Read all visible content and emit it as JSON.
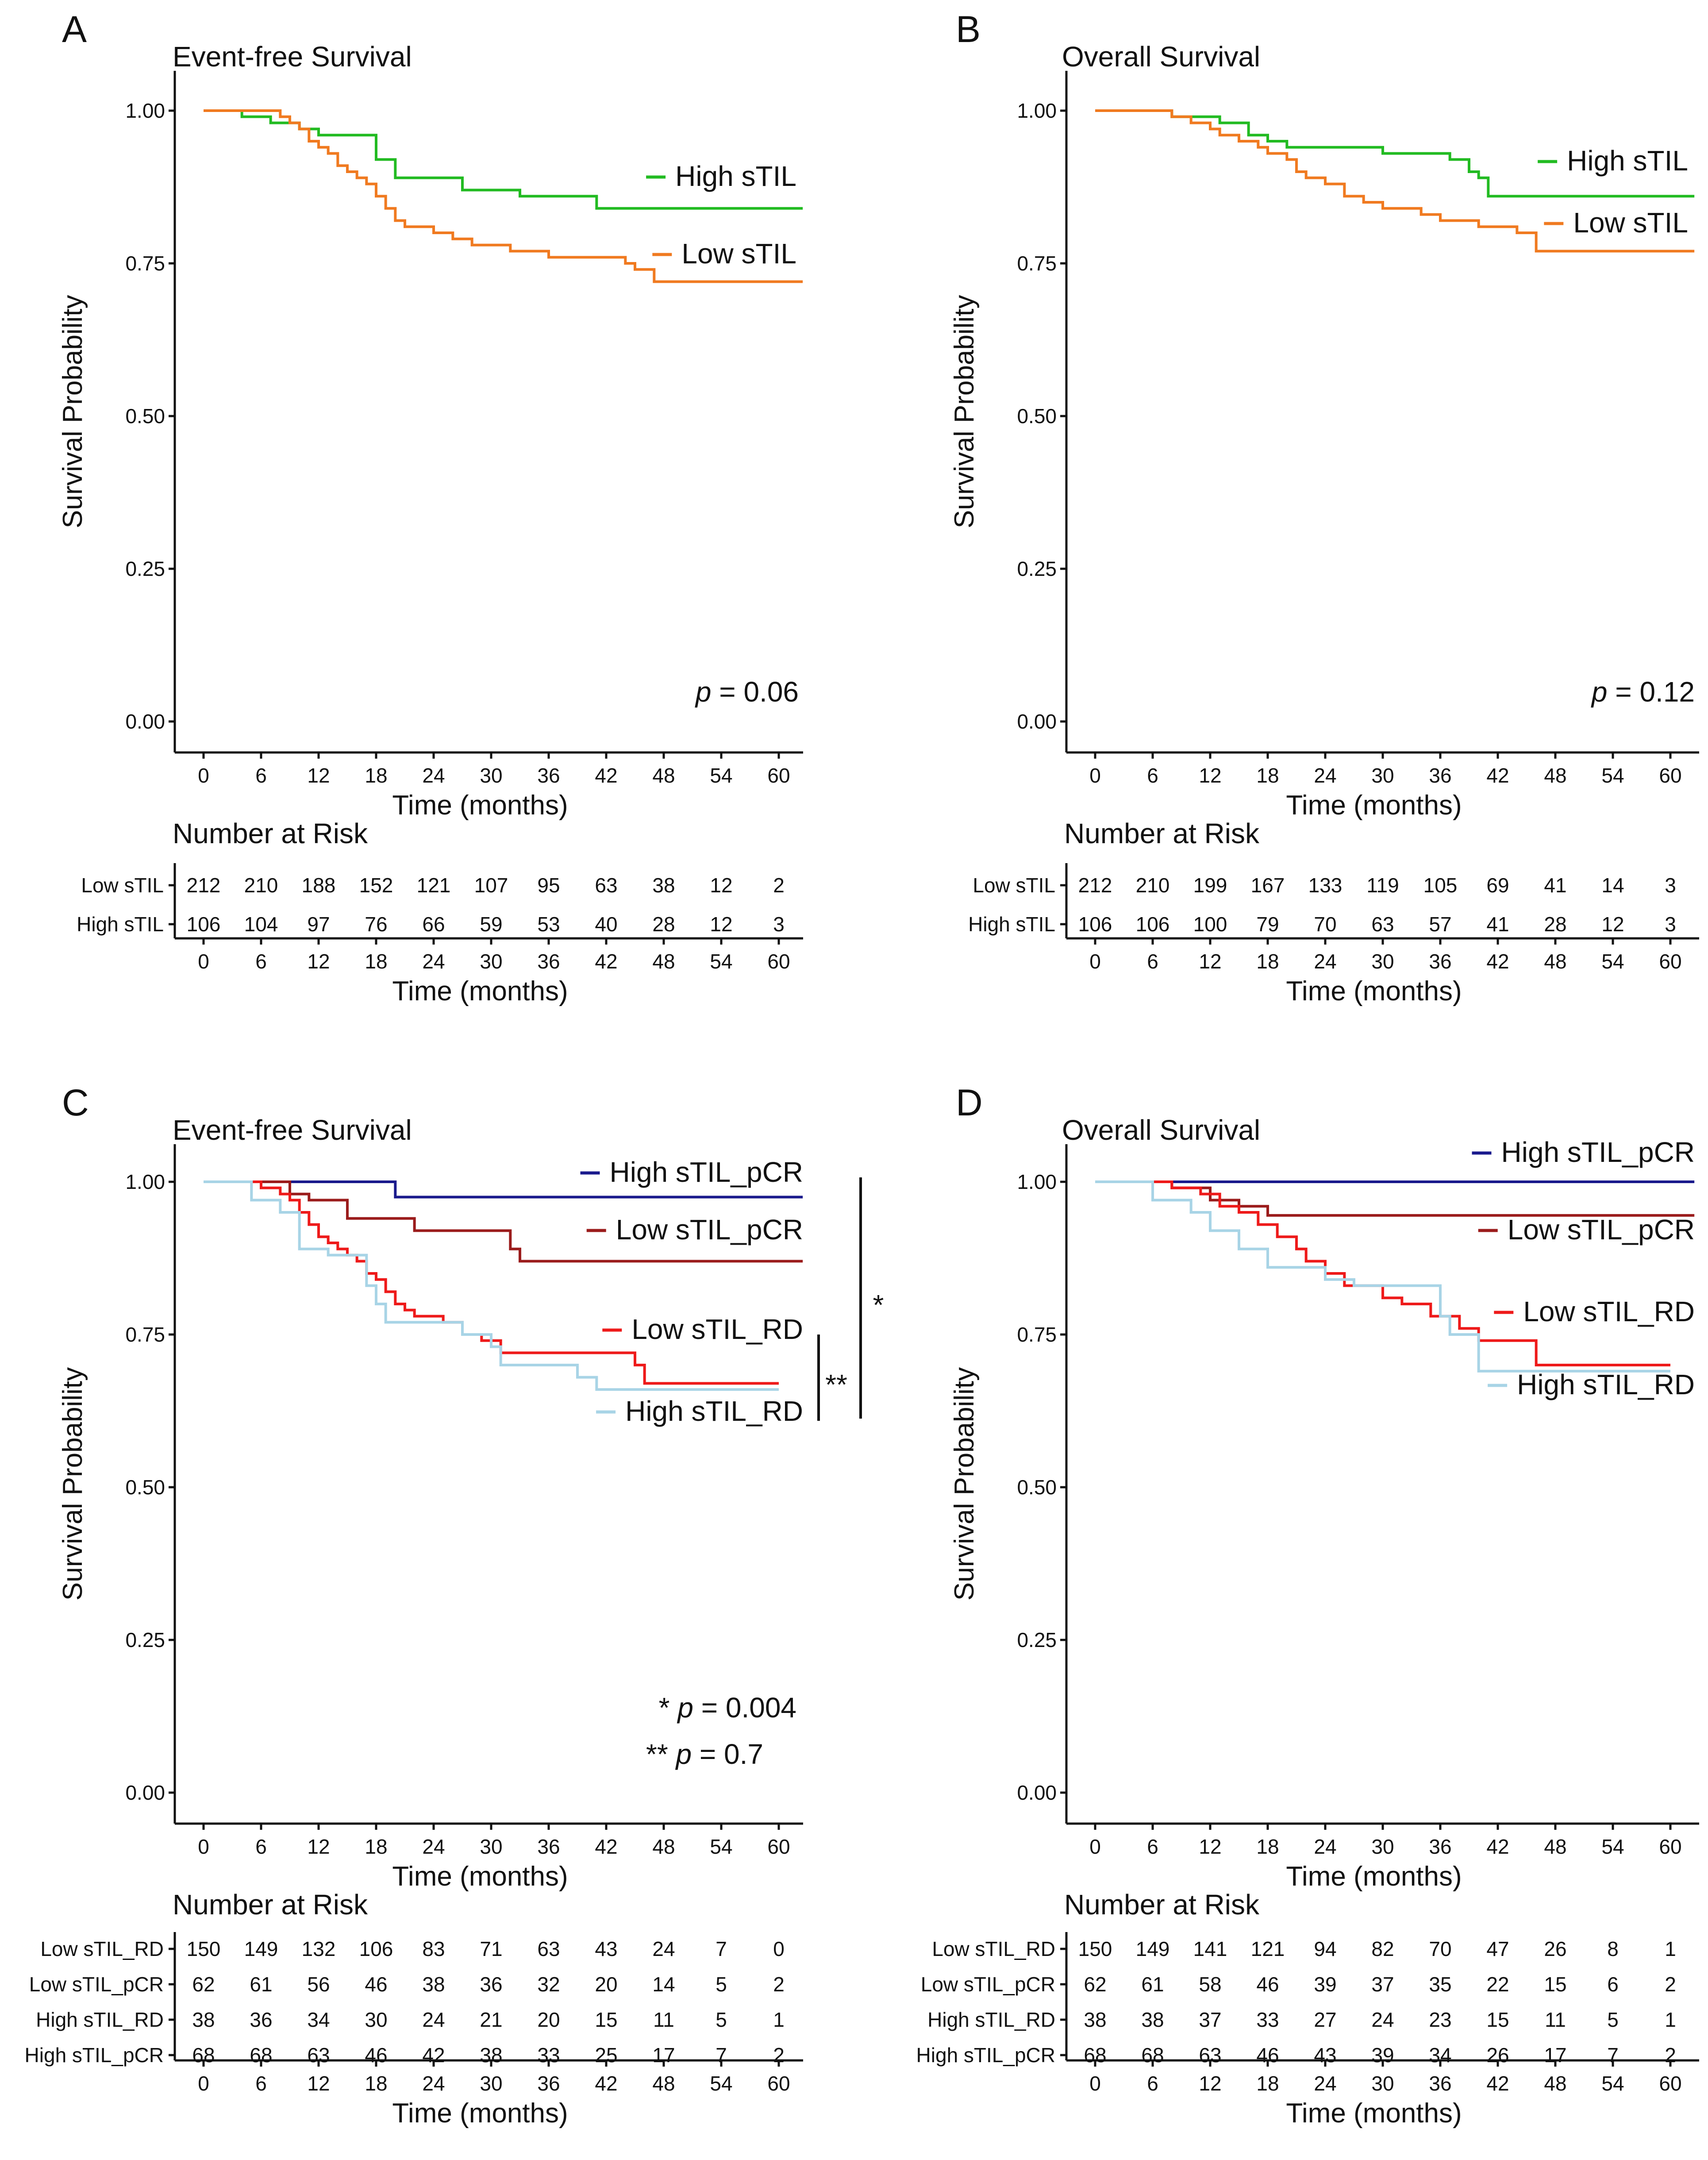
{
  "chart_data": [
    {
      "type": "line",
      "panel_letter": "A",
      "title": "Event-free Survival",
      "xlabel": "Time (months)",
      "ylabel": "Survival Probability",
      "xlim": [
        0,
        60
      ],
      "ylim": [
        0,
        1
      ],
      "x_ticks": [
        0,
        6,
        12,
        18,
        24,
        30,
        36,
        42,
        48,
        54,
        60
      ],
      "y_ticks": [
        "0.00",
        "0.25",
        "0.50",
        "0.75",
        "1.00"
      ],
      "series": [
        {
          "name": "High sTIL",
          "color": "#22bb22",
          "x": [
            0,
            4,
            7,
            10,
            12,
            17,
            18,
            20,
            24,
            27,
            30,
            33,
            37,
            41,
            45,
            50,
            55,
            62.5
          ],
          "y": [
            1.0,
            0.99,
            0.98,
            0.97,
            0.96,
            0.96,
            0.92,
            0.89,
            0.89,
            0.87,
            0.87,
            0.86,
            0.86,
            0.84,
            0.84,
            0.84,
            0.84,
            0.84
          ]
        },
        {
          "name": "Low sTIL",
          "color": "#f07a20",
          "x": [
            0,
            6,
            8,
            9,
            10,
            11,
            12,
            13,
            14,
            15,
            16,
            17,
            18,
            19,
            20,
            21,
            22,
            24,
            26,
            28,
            30,
            32,
            34,
            36,
            40,
            44,
            45,
            47,
            50,
            55,
            62.5
          ],
          "y": [
            1.0,
            1.0,
            0.99,
            0.98,
            0.97,
            0.95,
            0.94,
            0.93,
            0.91,
            0.9,
            0.89,
            0.88,
            0.86,
            0.84,
            0.82,
            0.81,
            0.81,
            0.8,
            0.79,
            0.78,
            0.78,
            0.77,
            0.77,
            0.76,
            0.76,
            0.75,
            0.74,
            0.72,
            0.72,
            0.72,
            0.72
          ]
        }
      ],
      "p_text": [
        {
          "prefix": "",
          "italic": "p",
          "suffix": " = 0.06"
        }
      ],
      "risk_table": {
        "title": "Number at Risk",
        "rows": [
          {
            "label": "Low sTIL",
            "counts": [
              212,
              210,
              188,
              152,
              121,
              107,
              95,
              63,
              38,
              12,
              2
            ]
          },
          {
            "label": "High sTIL",
            "counts": [
              106,
              104,
              97,
              76,
              66,
              59,
              53,
              40,
              28,
              12,
              3
            ]
          }
        ]
      }
    },
    {
      "type": "line",
      "panel_letter": "B",
      "title": "Overall Survival",
      "xlabel": "Time (months)",
      "ylabel": "Survival Probability",
      "xlim": [
        0,
        60
      ],
      "ylim": [
        0,
        1
      ],
      "x_ticks": [
        0,
        6,
        12,
        18,
        24,
        30,
        36,
        42,
        48,
        54,
        60
      ],
      "y_ticks": [
        "0.00",
        "0.25",
        "0.50",
        "0.75",
        "1.00"
      ],
      "series": [
        {
          "name": "High sTIL",
          "color": "#22bb22",
          "x": [
            0,
            8,
            10,
            13,
            16,
            18,
            20,
            26,
            30,
            36,
            37,
            39,
            40,
            41,
            45,
            50,
            62.5
          ],
          "y": [
            1.0,
            0.99,
            0.99,
            0.98,
            0.96,
            0.95,
            0.94,
            0.94,
            0.93,
            0.93,
            0.92,
            0.9,
            0.89,
            0.86,
            0.86,
            0.86,
            0.86
          ]
        },
        {
          "name": "Low sTIL",
          "color": "#f07a20",
          "x": [
            0,
            8,
            10,
            12,
            13,
            15,
            17,
            18,
            20,
            21,
            22,
            24,
            26,
            28,
            30,
            34,
            36,
            40,
            44,
            46,
            50,
            55,
            62.5
          ],
          "y": [
            1.0,
            0.99,
            0.98,
            0.97,
            0.96,
            0.95,
            0.94,
            0.93,
            0.92,
            0.9,
            0.89,
            0.88,
            0.86,
            0.85,
            0.84,
            0.83,
            0.82,
            0.81,
            0.8,
            0.77,
            0.77,
            0.77,
            0.77
          ]
        }
      ],
      "p_text": [
        {
          "prefix": "",
          "italic": "p",
          "suffix": " = 0.12"
        }
      ],
      "risk_table": {
        "title": "Number at Risk",
        "rows": [
          {
            "label": "Low sTIL",
            "counts": [
              212,
              210,
              199,
              167,
              133,
              119,
              105,
              69,
              41,
              14,
              3
            ]
          },
          {
            "label": "High sTIL",
            "counts": [
              106,
              106,
              100,
              79,
              70,
              63,
              57,
              41,
              28,
              12,
              3
            ]
          }
        ]
      }
    },
    {
      "type": "line",
      "panel_letter": "C",
      "title": "Event-free Survival",
      "xlabel": "Time (months)",
      "ylabel": "Survival Probability",
      "xlim": [
        0,
        60
      ],
      "ylim": [
        0,
        1
      ],
      "x_ticks": [
        0,
        6,
        12,
        18,
        24,
        30,
        36,
        42,
        48,
        54,
        60
      ],
      "y_ticks": [
        "0.00",
        "0.25",
        "0.50",
        "0.75",
        "1.00"
      ],
      "series": [
        {
          "name": "High sTIL_pCR",
          "color": "#1a1a8c",
          "x": [
            0,
            20,
            62.5
          ],
          "y": [
            1.0,
            0.975,
            0.975
          ]
        },
        {
          "name": "Low sTIL_pCR",
          "color": "#9b1c1c",
          "x": [
            0,
            9,
            11,
            15,
            22,
            32,
            33,
            62.5
          ],
          "y": [
            1.0,
            0.98,
            0.97,
            0.94,
            0.92,
            0.89,
            0.87,
            0.87
          ]
        },
        {
          "name": "Low sTIL_RD",
          "color": "#ee1a1a",
          "x": [
            0,
            6,
            8,
            9,
            10,
            11,
            12,
            13,
            14,
            15,
            16,
            17,
            18,
            19,
            20,
            21,
            22,
            23,
            25,
            27,
            29,
            31,
            45,
            46,
            60
          ],
          "y": [
            1.0,
            0.99,
            0.98,
            0.97,
            0.95,
            0.93,
            0.91,
            0.9,
            0.89,
            0.88,
            0.87,
            0.85,
            0.84,
            0.82,
            0.8,
            0.79,
            0.78,
            0.78,
            0.77,
            0.75,
            0.74,
            0.72,
            0.7,
            0.67,
            0.67
          ]
        },
        {
          "name": "High sTIL_RD",
          "color": "#a8d4e6",
          "x": [
            0,
            5,
            8,
            10,
            13,
            17,
            18,
            19,
            22,
            27,
            30,
            31,
            33,
            39,
            41,
            60
          ],
          "y": [
            1.0,
            0.97,
            0.95,
            0.89,
            0.88,
            0.83,
            0.8,
            0.77,
            0.77,
            0.75,
            0.73,
            0.7,
            0.7,
            0.68,
            0.66,
            0.66
          ]
        }
      ],
      "p_text": [
        {
          "prefix": "* ",
          "italic": "p",
          "suffix": " = 0.004"
        },
        {
          "prefix": "** ",
          "italic": "p",
          "suffix": " = 0.7"
        }
      ],
      "brackets": [
        {
          "label": "*"
        },
        {
          "label": "**"
        }
      ],
      "risk_table": {
        "title": "Number at Risk",
        "rows": [
          {
            "label": "Low sTIL_RD",
            "counts": [
              150,
              149,
              132,
              106,
              83,
              71,
              63,
              43,
              24,
              7,
              0
            ]
          },
          {
            "label": "Low sTIL_pCR",
            "counts": [
              62,
              61,
              56,
              46,
              38,
              36,
              32,
              20,
              14,
              5,
              2
            ]
          },
          {
            "label": "High sTIL_RD",
            "counts": [
              38,
              36,
              34,
              30,
              24,
              21,
              20,
              15,
              11,
              5,
              1
            ]
          },
          {
            "label": "High sTIL_pCR",
            "counts": [
              68,
              68,
              63,
              46,
              42,
              38,
              33,
              25,
              17,
              7,
              2
            ]
          }
        ]
      }
    },
    {
      "type": "line",
      "panel_letter": "D",
      "title": "Overall Survival",
      "xlabel": "Time (months)",
      "ylabel": "Survival Probability",
      "xlim": [
        0,
        60
      ],
      "ylim": [
        0,
        1
      ],
      "x_ticks": [
        0,
        6,
        12,
        18,
        24,
        30,
        36,
        42,
        48,
        54,
        60
      ],
      "y_ticks": [
        "0.00",
        "0.25",
        "0.50",
        "0.75",
        "1.00"
      ],
      "series": [
        {
          "name": "High sTIL_pCR",
          "color": "#1a1a8c",
          "x": [
            0,
            62.5
          ],
          "y": [
            1.0,
            1.0
          ]
        },
        {
          "name": "Low sTIL_pCR",
          "color": "#9b1c1c",
          "x": [
            0,
            8,
            12,
            15,
            18,
            62.5
          ],
          "y": [
            1.0,
            0.99,
            0.97,
            0.96,
            0.945,
            0.945
          ]
        },
        {
          "name": "Low sTIL_RD",
          "color": "#ee1a1a",
          "x": [
            0,
            8,
            11,
            13,
            15,
            17,
            19,
            21,
            22,
            24,
            26,
            30,
            32,
            35,
            38,
            40,
            45,
            46,
            60
          ],
          "y": [
            1.0,
            0.99,
            0.98,
            0.96,
            0.95,
            0.93,
            0.91,
            0.89,
            0.87,
            0.85,
            0.83,
            0.81,
            0.8,
            0.78,
            0.76,
            0.74,
            0.74,
            0.7,
            0.7
          ]
        },
        {
          "name": "High sTIL_RD",
          "color": "#a8d4e6",
          "x": [
            0,
            6,
            10,
            12,
            15,
            18,
            22,
            24,
            27,
            30,
            36,
            37,
            40,
            60
          ],
          "y": [
            1.0,
            0.97,
            0.95,
            0.92,
            0.89,
            0.86,
            0.86,
            0.84,
            0.83,
            0.83,
            0.78,
            0.75,
            0.69,
            0.69
          ]
        }
      ],
      "p_text": [],
      "risk_table": {
        "title": "Number at Risk",
        "rows": [
          {
            "label": "Low sTIL_RD",
            "counts": [
              150,
              149,
              141,
              121,
              94,
              82,
              70,
              47,
              26,
              8,
              1
            ]
          },
          {
            "label": "Low sTIL_pCR",
            "counts": [
              62,
              61,
              58,
              46,
              39,
              37,
              35,
              22,
              15,
              6,
              2
            ]
          },
          {
            "label": "High sTIL_RD",
            "counts": [
              38,
              38,
              37,
              33,
              27,
              24,
              23,
              15,
              11,
              5,
              1
            ]
          },
          {
            "label": "High sTIL_pCR",
            "counts": [
              68,
              68,
              63,
              46,
              43,
              39,
              34,
              26,
              17,
              7,
              2
            ]
          }
        ]
      }
    }
  ]
}
